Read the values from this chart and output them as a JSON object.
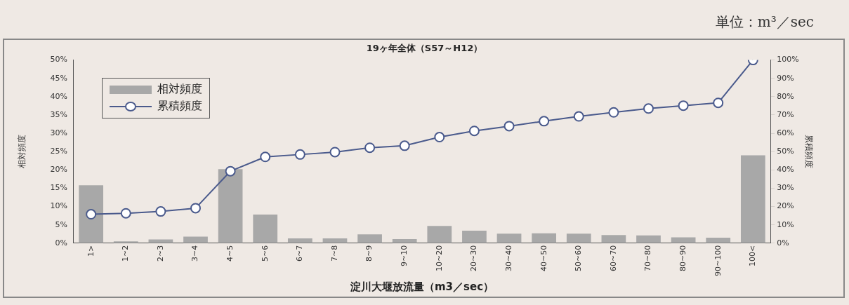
{
  "chart_data": {
    "type": "bar",
    "title": "19ヶ年全体（S57～H12）",
    "xlabel": "淀川大堰放流量（m3／sec）",
    "ylabel": "相対頻度",
    "y2label": "累積頻度",
    "annotations": [
      "単位：m³／sec"
    ],
    "categories": [
      "1>",
      "1~2",
      "2~3",
      "3~4",
      "4~5",
      "5~6",
      "6~7",
      "7~8",
      "8~9",
      "9~10",
      "10~20",
      "20~30",
      "30~40",
      "40~50",
      "50~60",
      "60~70",
      "70~80",
      "80~90",
      "90~100",
      "100<"
    ],
    "series": [
      {
        "name": "相対頻度",
        "color": "#a8a8a8",
        "values": [
          15.8,
          0.5,
          1.0,
          1.8,
          20.2,
          7.8,
          1.3,
          1.3,
          2.4,
          1.1,
          4.7,
          3.4,
          2.6,
          2.7,
          2.6,
          2.2,
          2.1,
          1.6,
          1.5,
          24.0
        ]
      },
      {
        "name": "累積頻度",
        "type": "line",
        "axis": "y2",
        "color": "#4a5a8c",
        "marker": "circle",
        "values": [
          15.8,
          16.3,
          17.3,
          19.1,
          39.3,
          47.1,
          48.4,
          49.7,
          52.1,
          53.2,
          57.9,
          61.3,
          63.9,
          66.6,
          69.2,
          71.4,
          73.5,
          75.1,
          76.6,
          100
        ]
      }
    ],
    "ylim": [
      0,
      50
    ],
    "yticks": [
      {
        "value": 0,
        "label": "0%"
      },
      {
        "value": 5,
        "label": "5%"
      },
      {
        "value": 10,
        "label": "10%"
      },
      {
        "value": 15,
        "label": "15%"
      },
      {
        "value": 20,
        "label": "20%"
      },
      {
        "value": 25,
        "label": "25%"
      },
      {
        "value": 30,
        "label": "30%"
      },
      {
        "value": 35,
        "label": "35%"
      },
      {
        "value": 40,
        "label": "40%"
      },
      {
        "value": 45,
        "label": "45%"
      },
      {
        "value": 50,
        "label": "50%"
      }
    ],
    "y2lim": [
      0,
      100
    ],
    "y2ticks": [
      {
        "value": 0,
        "label": "0%"
      },
      {
        "value": 10,
        "label": "10%"
      },
      {
        "value": 20,
        "label": "20%"
      },
      {
        "value": 30,
        "label": "30%"
      },
      {
        "value": 40,
        "label": "40%"
      },
      {
        "value": 50,
        "label": "50%"
      },
      {
        "value": 60,
        "label": "60%"
      },
      {
        "value": 70,
        "label": "70%"
      },
      {
        "value": 80,
        "label": "80%"
      },
      {
        "value": 90,
        "label": "90%"
      },
      {
        "value": 100,
        "label": "100%"
      }
    ],
    "grid": false,
    "legend": "top left"
  }
}
